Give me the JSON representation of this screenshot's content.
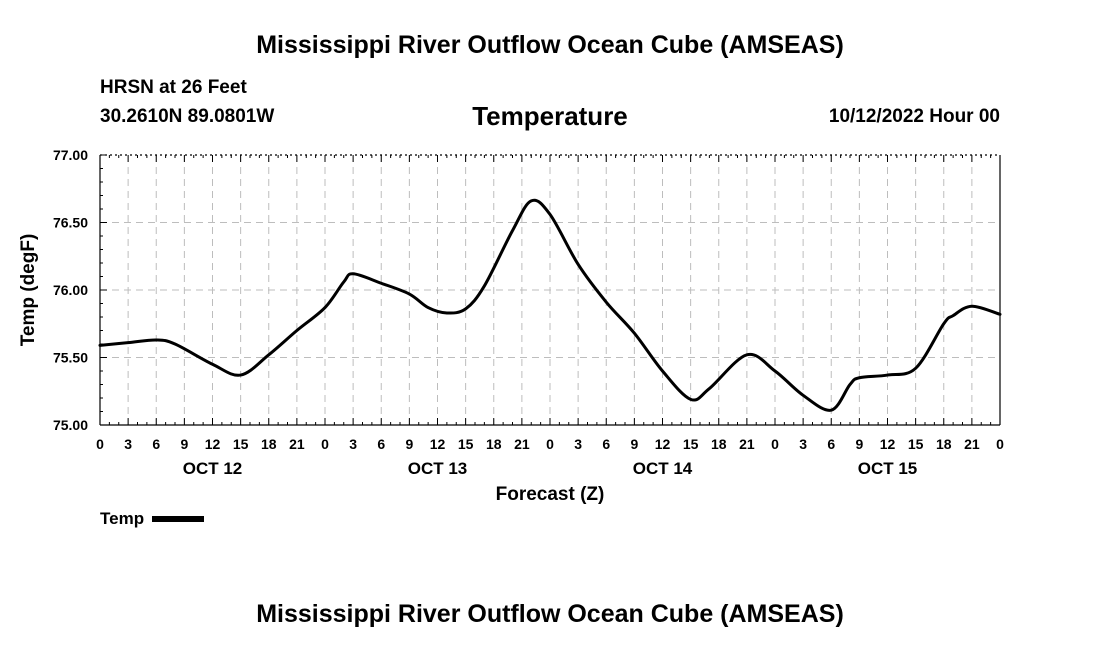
{
  "header": {
    "title": "Mississippi River Outflow Ocean Cube (AMSEAS)",
    "station": "HRSN at 26 Feet",
    "coords": "30.2610N  89.0801W",
    "variable": "Temperature",
    "date": "10/12/2022 Hour 00"
  },
  "footer": {
    "title": "Mississippi River Outflow Ocean Cube (AMSEAS)"
  },
  "legend": {
    "label": "Temp",
    "color": "#000000"
  },
  "chart_data": {
    "type": "line",
    "title": "Temperature",
    "xlabel": "Forecast (Z)",
    "ylabel": "Temp (degF)",
    "ylim": [
      75.0,
      77.0
    ],
    "yticks": [
      "75.00",
      "75.50",
      "76.00",
      "76.50",
      "77.00"
    ],
    "xlim": [
      0,
      96
    ],
    "xticks": [
      "0",
      "3",
      "6",
      "9",
      "12",
      "15",
      "18",
      "21",
      "0",
      "3",
      "6",
      "9",
      "12",
      "15",
      "18",
      "21",
      "0",
      "3",
      "6",
      "9",
      "12",
      "15",
      "18",
      "21",
      "0",
      "3",
      "6",
      "9",
      "12",
      "15",
      "18",
      "21",
      "0"
    ],
    "day_labels": [
      {
        "label": "OCT 12",
        "hour": 12
      },
      {
        "label": "OCT 13",
        "hour": 36
      },
      {
        "label": "OCT 14",
        "hour": 60
      },
      {
        "label": "OCT 15",
        "hour": 84
      }
    ],
    "grid": true,
    "series": [
      {
        "name": "Temp",
        "x": [
          0,
          3,
          6,
          8,
          12,
          15,
          18,
          21,
          24,
          26,
          27,
          30,
          33,
          35,
          37,
          39,
          41,
          44,
          46,
          48,
          51,
          54,
          57,
          60,
          63,
          65,
          69,
          72,
          75,
          78,
          80,
          81,
          84,
          87,
          90,
          91,
          93,
          96
        ],
        "y": [
          75.59,
          75.61,
          75.63,
          75.6,
          75.45,
          75.37,
          75.52,
          75.7,
          75.87,
          76.06,
          76.12,
          76.05,
          75.97,
          75.87,
          75.83,
          75.86,
          76.03,
          76.44,
          76.66,
          76.56,
          76.19,
          75.91,
          75.68,
          75.4,
          75.19,
          75.27,
          75.52,
          75.4,
          75.22,
          75.11,
          75.3,
          75.35,
          75.37,
          75.42,
          75.75,
          75.81,
          75.88,
          75.82
        ]
      }
    ]
  }
}
